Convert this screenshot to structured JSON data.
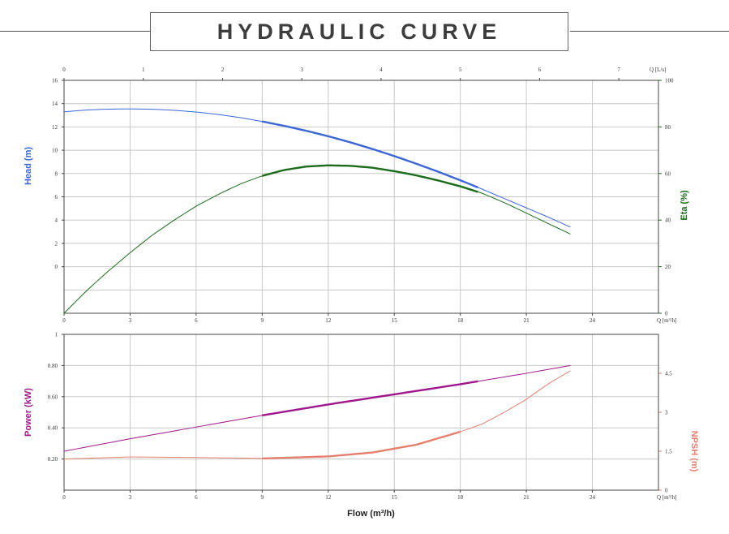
{
  "title": "HYDRAULIC CURVE",
  "colors": {
    "head": "#3a66d6",
    "eta": "#1a6b1a",
    "power": "#a0168c",
    "npsh": "#e5806f",
    "grid": "#c8c8c8",
    "axis": "#444444"
  },
  "chart_data": [
    {
      "type": "line",
      "panel": "top",
      "x_axis": {
        "label": "Q [m³/h]",
        "range": [
          0,
          27
        ],
        "ticks": [
          "0",
          "3",
          "6",
          "9",
          "12",
          "15",
          "18",
          "21",
          "24"
        ]
      },
      "x_axis_top": {
        "label": "Q [L/s]",
        "range": [
          0,
          7.5
        ],
        "ticks": [
          "0",
          "1",
          "2",
          "3",
          "4",
          "5",
          "6",
          "7"
        ]
      },
      "y_axis_left": {
        "label": "Head (m)",
        "range": [
          -4,
          16
        ],
        "ticks": [
          "0",
          "2",
          "4",
          "6",
          "8",
          "10",
          "12",
          "14",
          "16"
        ]
      },
      "y_axis_right": {
        "label": "Eta (%)",
        "range": [
          0,
          100
        ],
        "ticks": [
          "0",
          "20",
          "40",
          "60",
          "80",
          "100"
        ]
      },
      "grid": true,
      "series": [
        {
          "name": "Head (m)",
          "axis": "left",
          "x": [
            0,
            1,
            2,
            3,
            4,
            5,
            6,
            7,
            8,
            9,
            10,
            11,
            12,
            13,
            14,
            15,
            16,
            17,
            18,
            19,
            20,
            21,
            22,
            23
          ],
          "y": [
            13.3,
            13.45,
            13.53,
            13.55,
            13.52,
            13.43,
            13.28,
            13.07,
            12.8,
            12.47,
            12.09,
            11.67,
            11.2,
            10.68,
            10.11,
            9.5,
            8.84,
            8.15,
            7.42,
            6.65,
            5.85,
            5.05,
            4.25,
            3.4
          ],
          "bold_range": [
            9,
            18.8
          ]
        },
        {
          "name": "Eta (%)",
          "axis": "right",
          "x": [
            0,
            1,
            2,
            3,
            4,
            5,
            6,
            7,
            8,
            9,
            10,
            11,
            12,
            13,
            14,
            15,
            16,
            17,
            18,
            19,
            20,
            21,
            22,
            23
          ],
          "y": [
            0,
            9.5,
            18,
            26,
            33.5,
            40,
            46,
            51,
            55.5,
            59,
            61.5,
            63,
            63.5,
            63.3,
            62.5,
            61,
            59.2,
            57,
            54.5,
            51.5,
            47.5,
            43,
            38.5,
            34
          ],
          "bold_range": [
            9,
            18.8
          ]
        }
      ]
    },
    {
      "type": "line",
      "panel": "bottom",
      "xlabel": "Flow (m³/h)",
      "x_axis": {
        "label": "Q [m³/h]",
        "range": [
          0,
          27
        ],
        "ticks": [
          "0",
          "3",
          "6",
          "9",
          "12",
          "15",
          "18",
          "21",
          "24"
        ]
      },
      "y_axis_left": {
        "label": "Power (kW)",
        "range": [
          0,
          1
        ],
        "ticks": [
          "0.20",
          "0.40",
          "0.60",
          "0.80",
          "1"
        ]
      },
      "y_axis_right": {
        "label": "NPSH (m)",
        "range": [
          0,
          6
        ],
        "ticks": [
          "0",
          "1.5",
          "3",
          "4.5"
        ]
      },
      "grid": true,
      "series": [
        {
          "name": "Power (kW)",
          "axis": "left",
          "x": [
            0,
            3,
            6,
            9,
            12,
            15,
            18,
            21,
            23
          ],
          "y": [
            0.25,
            0.33,
            0.405,
            0.48,
            0.55,
            0.615,
            0.68,
            0.75,
            0.8
          ],
          "bold_range": [
            9,
            18.8
          ]
        },
        {
          "name": "NPSH (m)",
          "axis": "right",
          "x": [
            0,
            3,
            6,
            9,
            12,
            14,
            16,
            18,
            19,
            20,
            21,
            22,
            23
          ],
          "y": [
            1.2,
            1.28,
            1.26,
            1.22,
            1.3,
            1.45,
            1.75,
            2.25,
            2.55,
            3.0,
            3.5,
            4.1,
            4.6
          ],
          "bold_range": [
            9,
            18
          ]
        }
      ]
    }
  ]
}
